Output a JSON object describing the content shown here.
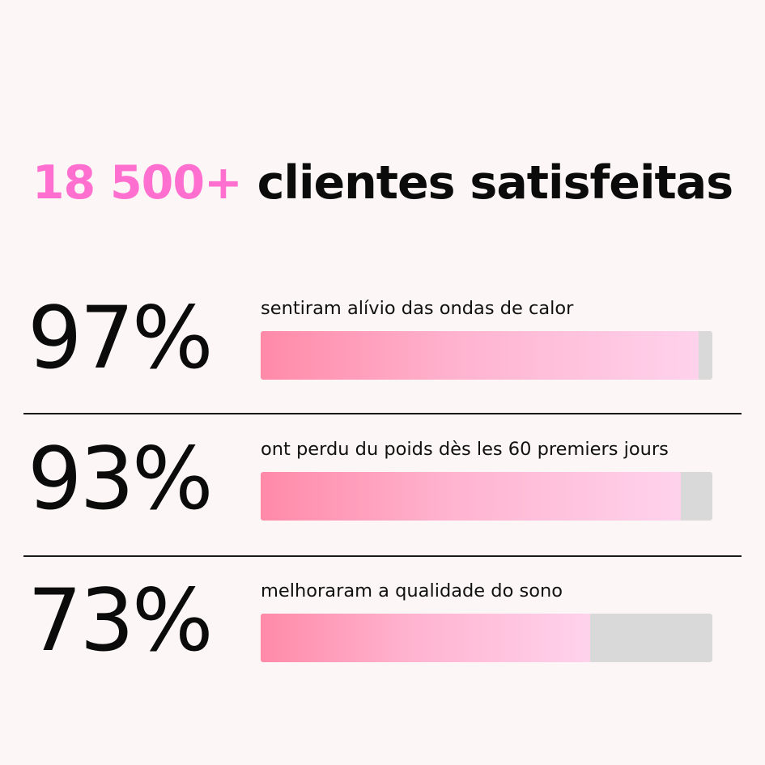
{
  "headline": {
    "accent": "18 500+",
    "rest": "clientes satisfeitas",
    "accent_color": "#ff6fcf"
  },
  "stats": [
    {
      "percent_label": "97%",
      "description": "sentiram alívio das ondas de calor",
      "value": 97
    },
    {
      "percent_label": "93%",
      "description": "ont perdu du poids dès les 60 premiers jours",
      "value": 93
    },
    {
      "percent_label": "73%",
      "description": "melhoraram a qualidade do sono",
      "value": 73
    }
  ],
  "colors": {
    "background": "#fcf7f6",
    "bar_track": "#d9d9d9",
    "bar_fill_start": "#ff8aa8",
    "bar_fill_end": "#ffd2ec"
  }
}
